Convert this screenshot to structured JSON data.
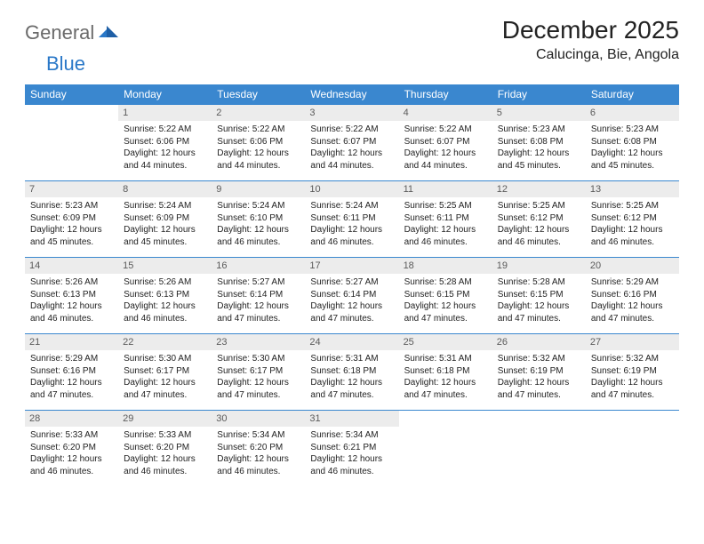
{
  "logo": {
    "general": "General",
    "blue": "Blue"
  },
  "title": "December 2025",
  "location": "Calucinga, Bie, Angola",
  "colors": {
    "headerbar": "#3a87cf",
    "daynum_bg": "#ececec",
    "daynum_fg": "#5a5a5a",
    "text": "#222222",
    "logo_gray": "#6a6a6a",
    "logo_blue": "#2a78c8"
  },
  "weekdays": [
    "Sunday",
    "Monday",
    "Tuesday",
    "Wednesday",
    "Thursday",
    "Friday",
    "Saturday"
  ],
  "weeks": [
    [
      null,
      {
        "n": "1",
        "sr": "Sunrise: 5:22 AM",
        "ss": "Sunset: 6:06 PM",
        "d1": "Daylight: 12 hours",
        "d2": "and 44 minutes."
      },
      {
        "n": "2",
        "sr": "Sunrise: 5:22 AM",
        "ss": "Sunset: 6:06 PM",
        "d1": "Daylight: 12 hours",
        "d2": "and 44 minutes."
      },
      {
        "n": "3",
        "sr": "Sunrise: 5:22 AM",
        "ss": "Sunset: 6:07 PM",
        "d1": "Daylight: 12 hours",
        "d2": "and 44 minutes."
      },
      {
        "n": "4",
        "sr": "Sunrise: 5:22 AM",
        "ss": "Sunset: 6:07 PM",
        "d1": "Daylight: 12 hours",
        "d2": "and 44 minutes."
      },
      {
        "n": "5",
        "sr": "Sunrise: 5:23 AM",
        "ss": "Sunset: 6:08 PM",
        "d1": "Daylight: 12 hours",
        "d2": "and 45 minutes."
      },
      {
        "n": "6",
        "sr": "Sunrise: 5:23 AM",
        "ss": "Sunset: 6:08 PM",
        "d1": "Daylight: 12 hours",
        "d2": "and 45 minutes."
      }
    ],
    [
      {
        "n": "7",
        "sr": "Sunrise: 5:23 AM",
        "ss": "Sunset: 6:09 PM",
        "d1": "Daylight: 12 hours",
        "d2": "and 45 minutes."
      },
      {
        "n": "8",
        "sr": "Sunrise: 5:24 AM",
        "ss": "Sunset: 6:09 PM",
        "d1": "Daylight: 12 hours",
        "d2": "and 45 minutes."
      },
      {
        "n": "9",
        "sr": "Sunrise: 5:24 AM",
        "ss": "Sunset: 6:10 PM",
        "d1": "Daylight: 12 hours",
        "d2": "and 46 minutes."
      },
      {
        "n": "10",
        "sr": "Sunrise: 5:24 AM",
        "ss": "Sunset: 6:11 PM",
        "d1": "Daylight: 12 hours",
        "d2": "and 46 minutes."
      },
      {
        "n": "11",
        "sr": "Sunrise: 5:25 AM",
        "ss": "Sunset: 6:11 PM",
        "d1": "Daylight: 12 hours",
        "d2": "and 46 minutes."
      },
      {
        "n": "12",
        "sr": "Sunrise: 5:25 AM",
        "ss": "Sunset: 6:12 PM",
        "d1": "Daylight: 12 hours",
        "d2": "and 46 minutes."
      },
      {
        "n": "13",
        "sr": "Sunrise: 5:25 AM",
        "ss": "Sunset: 6:12 PM",
        "d1": "Daylight: 12 hours",
        "d2": "and 46 minutes."
      }
    ],
    [
      {
        "n": "14",
        "sr": "Sunrise: 5:26 AM",
        "ss": "Sunset: 6:13 PM",
        "d1": "Daylight: 12 hours",
        "d2": "and 46 minutes."
      },
      {
        "n": "15",
        "sr": "Sunrise: 5:26 AM",
        "ss": "Sunset: 6:13 PM",
        "d1": "Daylight: 12 hours",
        "d2": "and 46 minutes."
      },
      {
        "n": "16",
        "sr": "Sunrise: 5:27 AM",
        "ss": "Sunset: 6:14 PM",
        "d1": "Daylight: 12 hours",
        "d2": "and 47 minutes."
      },
      {
        "n": "17",
        "sr": "Sunrise: 5:27 AM",
        "ss": "Sunset: 6:14 PM",
        "d1": "Daylight: 12 hours",
        "d2": "and 47 minutes."
      },
      {
        "n": "18",
        "sr": "Sunrise: 5:28 AM",
        "ss": "Sunset: 6:15 PM",
        "d1": "Daylight: 12 hours",
        "d2": "and 47 minutes."
      },
      {
        "n": "19",
        "sr": "Sunrise: 5:28 AM",
        "ss": "Sunset: 6:15 PM",
        "d1": "Daylight: 12 hours",
        "d2": "and 47 minutes."
      },
      {
        "n": "20",
        "sr": "Sunrise: 5:29 AM",
        "ss": "Sunset: 6:16 PM",
        "d1": "Daylight: 12 hours",
        "d2": "and 47 minutes."
      }
    ],
    [
      {
        "n": "21",
        "sr": "Sunrise: 5:29 AM",
        "ss": "Sunset: 6:16 PM",
        "d1": "Daylight: 12 hours",
        "d2": "and 47 minutes."
      },
      {
        "n": "22",
        "sr": "Sunrise: 5:30 AM",
        "ss": "Sunset: 6:17 PM",
        "d1": "Daylight: 12 hours",
        "d2": "and 47 minutes."
      },
      {
        "n": "23",
        "sr": "Sunrise: 5:30 AM",
        "ss": "Sunset: 6:17 PM",
        "d1": "Daylight: 12 hours",
        "d2": "and 47 minutes."
      },
      {
        "n": "24",
        "sr": "Sunrise: 5:31 AM",
        "ss": "Sunset: 6:18 PM",
        "d1": "Daylight: 12 hours",
        "d2": "and 47 minutes."
      },
      {
        "n": "25",
        "sr": "Sunrise: 5:31 AM",
        "ss": "Sunset: 6:18 PM",
        "d1": "Daylight: 12 hours",
        "d2": "and 47 minutes."
      },
      {
        "n": "26",
        "sr": "Sunrise: 5:32 AM",
        "ss": "Sunset: 6:19 PM",
        "d1": "Daylight: 12 hours",
        "d2": "and 47 minutes."
      },
      {
        "n": "27",
        "sr": "Sunrise: 5:32 AM",
        "ss": "Sunset: 6:19 PM",
        "d1": "Daylight: 12 hours",
        "d2": "and 47 minutes."
      }
    ],
    [
      {
        "n": "28",
        "sr": "Sunrise: 5:33 AM",
        "ss": "Sunset: 6:20 PM",
        "d1": "Daylight: 12 hours",
        "d2": "and 46 minutes."
      },
      {
        "n": "29",
        "sr": "Sunrise: 5:33 AM",
        "ss": "Sunset: 6:20 PM",
        "d1": "Daylight: 12 hours",
        "d2": "and 46 minutes."
      },
      {
        "n": "30",
        "sr": "Sunrise: 5:34 AM",
        "ss": "Sunset: 6:20 PM",
        "d1": "Daylight: 12 hours",
        "d2": "and 46 minutes."
      },
      {
        "n": "31",
        "sr": "Sunrise: 5:34 AM",
        "ss": "Sunset: 6:21 PM",
        "d1": "Daylight: 12 hours",
        "d2": "and 46 minutes."
      },
      null,
      null,
      null
    ]
  ]
}
